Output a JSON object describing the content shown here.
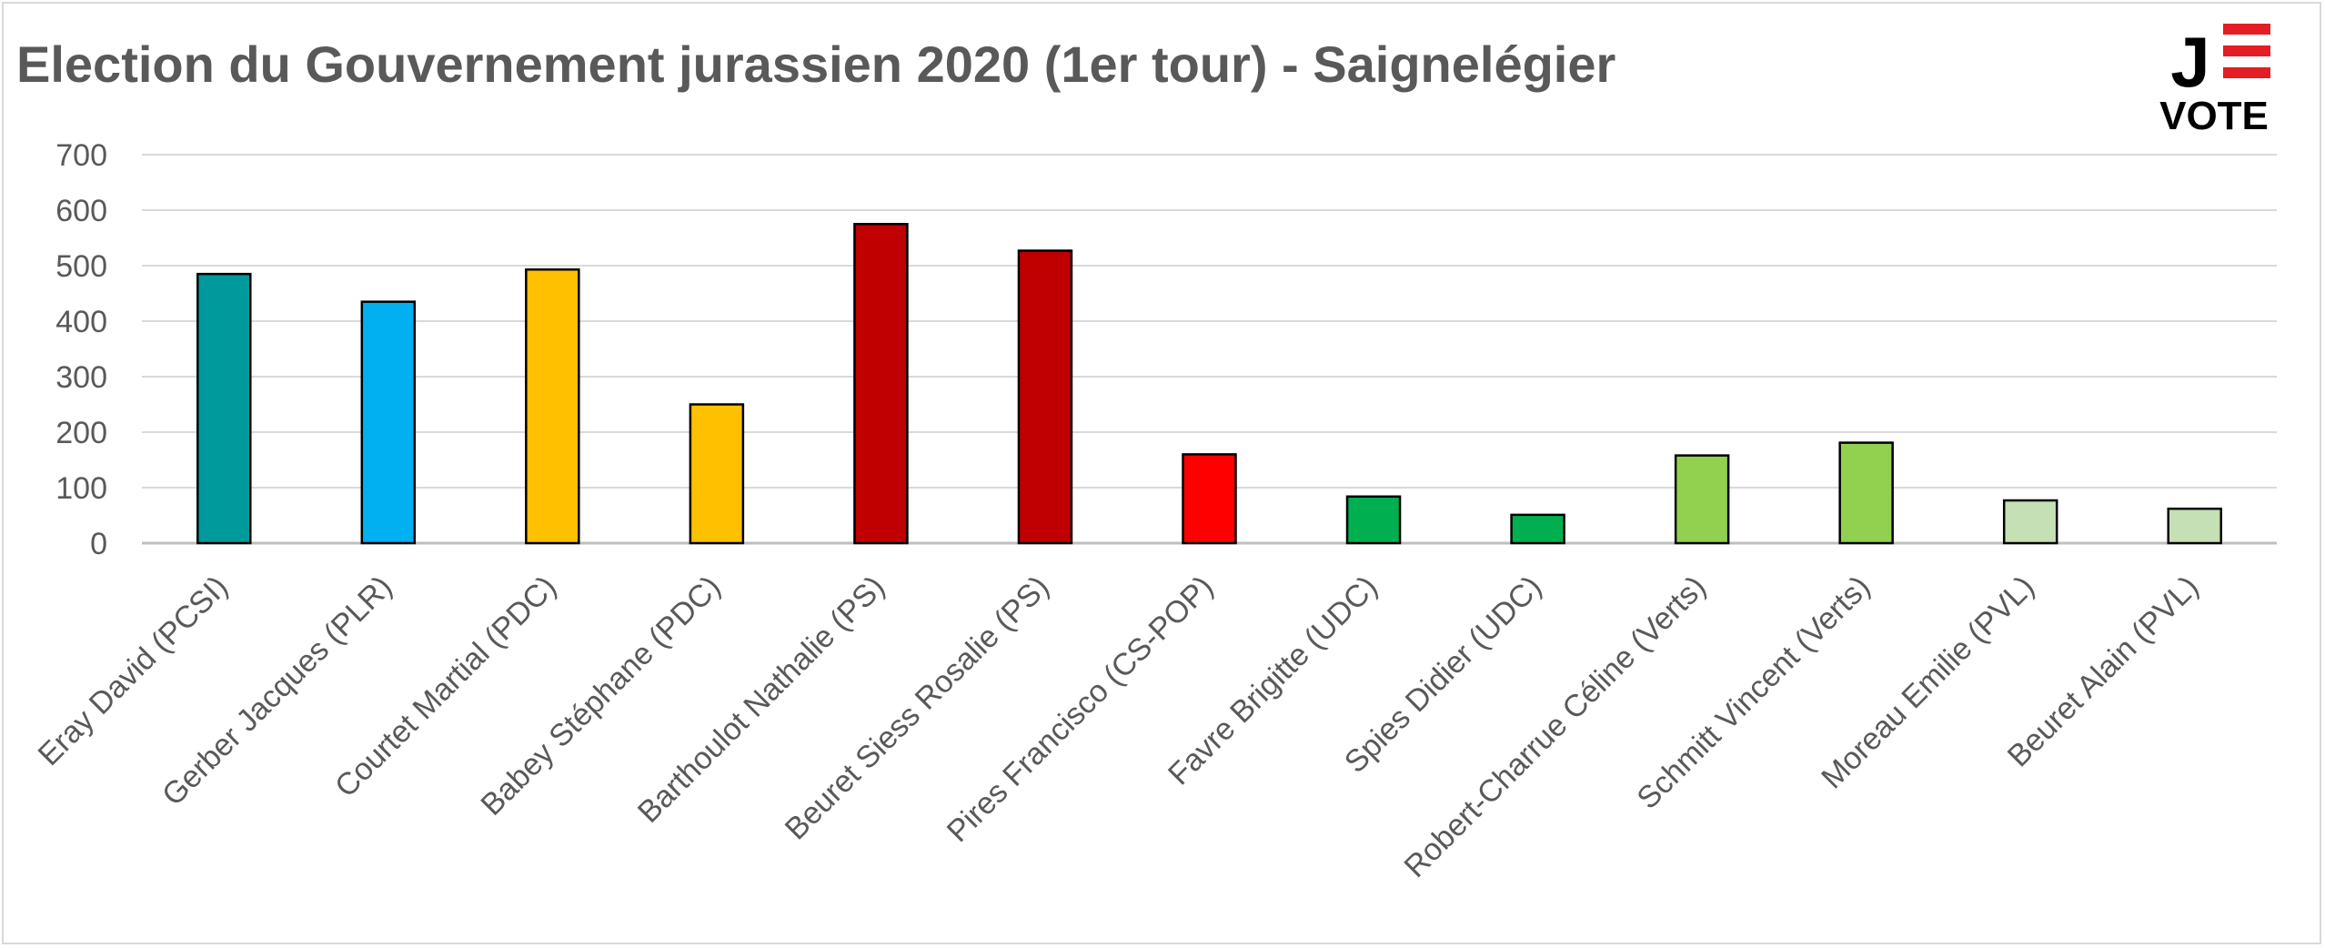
{
  "chart_data": {
    "type": "bar",
    "title": "Election du Gouvernement jurassien 2020 (1er tour) - Saignelégier",
    "categories": [
      "Eray David (PCSI)",
      "Gerber Jacques (PLR)",
      "Courtet Martial (PDC)",
      "Babey Stéphane (PDC)",
      "Barthoulot Nathalie (PS)",
      "Beuret Siess Rosalie (PS)",
      "Pires Francisco (CS-POP)",
      "Favre Brigitte (UDC)",
      "Spies Didier (UDC)",
      "Robert-Charrue Céline (Verts)",
      "Schmitt Vincent (Verts)",
      "Moreau Emilie (PVL)",
      "Beuret Alain (PVL)"
    ],
    "values": [
      485,
      435,
      493,
      250,
      575,
      527,
      160,
      84,
      51,
      158,
      181,
      77,
      62
    ],
    "colors": [
      "#00999c",
      "#00b0f0",
      "#ffc000",
      "#ffc000",
      "#c00000",
      "#c00000",
      "#ff0000",
      "#00b050",
      "#00b050",
      "#92d050",
      "#92d050",
      "#c5e0b4",
      "#c5e0b4"
    ],
    "xlabel": "",
    "ylabel": "",
    "ylim": [
      0,
      700
    ],
    "yticks": [
      "0",
      "100",
      "200",
      "300",
      "400",
      "500",
      "600",
      "700"
    ],
    "grid": true,
    "legend": "none"
  },
  "logo": {
    "letter": "J",
    "text": "VOTE",
    "accent_color": "#e31e24"
  }
}
